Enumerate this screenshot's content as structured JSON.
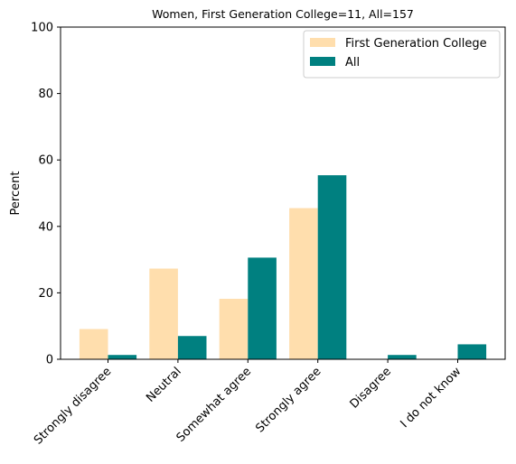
{
  "chart_data": {
    "type": "bar",
    "title": "Women, First Generation College=11, All=157",
    "xlabel": "",
    "ylabel": "Percent",
    "ylim": [
      0,
      100
    ],
    "yticks": [
      0,
      20,
      40,
      60,
      80,
      100
    ],
    "categories": [
      "Strongly disagree",
      "Neutral",
      "Somewhat agree",
      "Strongly agree",
      "Disagree",
      "I do not know"
    ],
    "series": [
      {
        "name": "First Generation College",
        "color": "#ffdead",
        "values": [
          9.1,
          27.3,
          18.2,
          45.5,
          0,
          0
        ]
      },
      {
        "name": "All",
        "color": "#008080",
        "values": [
          1.3,
          7.0,
          30.6,
          55.4,
          1.3,
          4.5
        ]
      }
    ],
    "legend": "top-right",
    "grid": false
  }
}
